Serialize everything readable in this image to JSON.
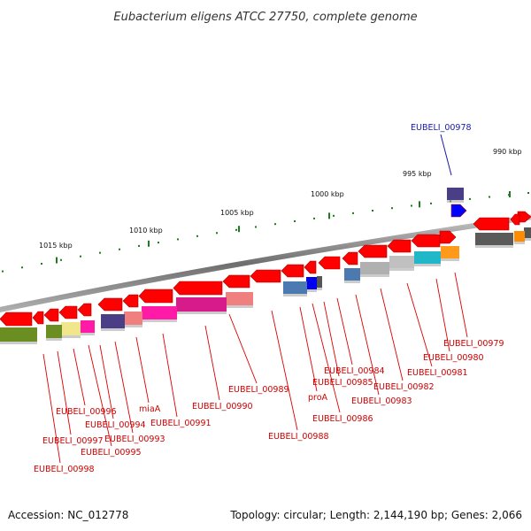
{
  "title": "Eubacterium eligens ATCC 27750, complete genome",
  "footer": {
    "accession": "Accession: NC_012778",
    "summary": "Topology: circular; Length: 2,144,190 bp; Genes: 2,066"
  },
  "scale_labels": [
    "990 kbp",
    "995 kbp",
    "1000 kbp",
    "1005 kbp",
    "1010 kbp",
    "1015 kbp"
  ],
  "highlighted_gene": "EUBELI_00978",
  "gene_labels": [
    "EUBELI_00979",
    "EUBELI_00980",
    "EUBELI_00981",
    "EUBELI_00982",
    "EUBELI_00983",
    "EUBELI_00984",
    "EUBELI_00985",
    "EUBELI_00986",
    "proA",
    "EUBELI_00988",
    "EUBELI_00989",
    "EUBELI_00990",
    "EUBELI_00991",
    "miaA",
    "EUBELI_00993",
    "EUBELI_00994",
    "EUBELI_00995",
    "EUBELI_00996",
    "EUBELI_00997",
    "EUBELI_00998"
  ],
  "colors": {
    "cds_forward": "#ff0000",
    "highlight": "#0000ff",
    "label_text": "#cc0000",
    "tick": "#1e7a1e",
    "backbone": "#8a8a8a"
  }
}
